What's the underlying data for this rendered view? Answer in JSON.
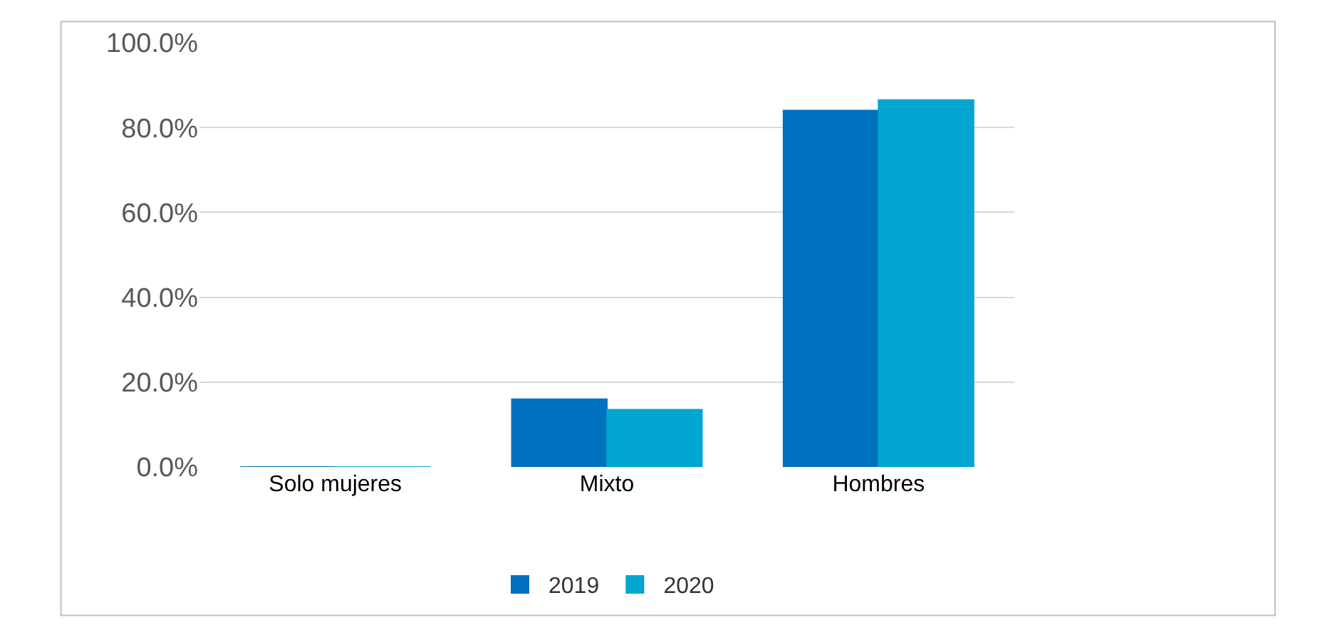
{
  "chart_data": {
    "type": "bar",
    "categories": [
      "Solo mujeres",
      "Mixto",
      "Hombres"
    ],
    "series": [
      {
        "name": "2019",
        "color": "#0070c0",
        "values": [
          0,
          16,
          84
        ]
      },
      {
        "name": "2020",
        "color": "#00a5d0",
        "values": [
          0,
          13.5,
          86.5
        ]
      }
    ],
    "ylim": [
      0,
      100
    ],
    "yticks": [
      {
        "value": 0,
        "label": "0.0%"
      },
      {
        "value": 20,
        "label": "20.0%"
      },
      {
        "value": 40,
        "label": "40.0%"
      },
      {
        "value": 60,
        "label": "60.0%"
      },
      {
        "value": 80,
        "label": "80.0%"
      },
      {
        "value": 100,
        "label": "100.0%"
      }
    ],
    "grid": "y",
    "legend": "bottom"
  }
}
